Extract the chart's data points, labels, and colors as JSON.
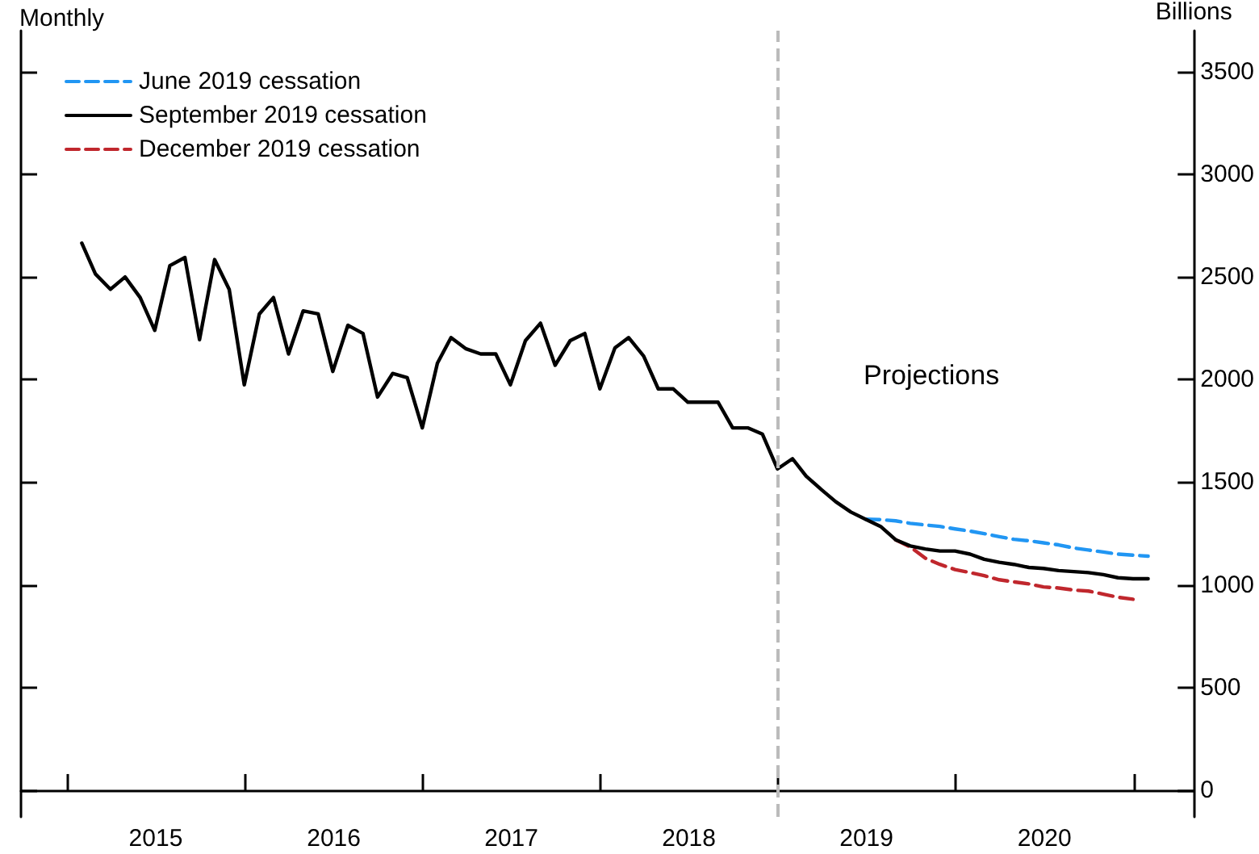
{
  "chart_data": {
    "type": "line",
    "ylabel": "Billions",
    "annotations": [
      "Monthly",
      "Projections"
    ],
    "x": [
      "2015-01-31",
      "2015-02-28",
      "2015-03-31",
      "2015-04-30",
      "2015-05-31",
      "2015-06-30",
      "2015-07-31",
      "2015-08-31",
      "2015-09-30",
      "2015-10-31",
      "2015-11-30",
      "2015-12-31",
      "2016-01-31",
      "2016-02-29",
      "2016-03-31",
      "2016-04-30",
      "2016-05-31",
      "2016-06-30",
      "2016-07-31",
      "2016-08-31",
      "2016-09-30",
      "2016-10-31",
      "2016-11-30",
      "2016-12-31",
      "2017-01-31",
      "2017-02-28",
      "2017-03-31",
      "2017-04-30",
      "2017-05-31",
      "2017-06-30",
      "2017-07-31",
      "2017-08-31",
      "2017-09-30",
      "2017-10-31",
      "2017-11-30",
      "2017-12-31",
      "2018-01-31",
      "2018-02-28",
      "2018-03-31",
      "2018-04-30",
      "2018-05-31",
      "2018-06-30",
      "2018-07-31",
      "2018-08-31",
      "2018-09-30",
      "2018-10-31",
      "2018-11-30",
      "2018-12-31",
      "2019-01-31",
      "2019-02-28",
      "2019-03-31",
      "2019-04-30",
      "2019-05-31",
      "2019-06-30",
      "2019-07-31",
      "2019-08-31",
      "2019-09-30",
      "2019-10-31",
      "2019-11-30",
      "2019-12-31",
      "2020-01-31",
      "2020-02-29",
      "2020-03-31",
      "2020-04-30",
      "2020-05-31",
      "2020-06-30",
      "2020-07-31",
      "2020-08-31",
      "2020-09-30",
      "2020-10-31",
      "2020-11-30",
      "2020-12-31",
      "2021-01-31"
    ],
    "series": [
      {
        "name": "June 2019 cessation",
        "color": "#2196f3",
        "line_style": "dashed",
        "values": [
          null,
          null,
          null,
          null,
          null,
          null,
          null,
          null,
          null,
          null,
          null,
          null,
          null,
          null,
          null,
          null,
          null,
          null,
          null,
          null,
          null,
          null,
          null,
          null,
          null,
          null,
          null,
          null,
          null,
          null,
          null,
          null,
          null,
          null,
          null,
          null,
          null,
          null,
          null,
          null,
          null,
          null,
          null,
          null,
          null,
          null,
          null,
          null,
          null,
          null,
          null,
          null,
          null,
          1320,
          1318,
          1312,
          1300,
          1292,
          1285,
          1273,
          1262,
          1250,
          1235,
          1222,
          1215,
          1205,
          1195,
          1180,
          1170,
          1160,
          1150,
          1145,
          1140
        ]
      },
      {
        "name": "September 2019 cessation",
        "color": "#000000",
        "line_style": "solid",
        "values": [
          2665,
          2515,
          2440,
          2500,
          2400,
          2240,
          2555,
          2595,
          2195,
          2585,
          2440,
          1975,
          2320,
          2400,
          2125,
          2335,
          2320,
          2040,
          2265,
          2225,
          1915,
          2030,
          2010,
          1765,
          2080,
          2205,
          2150,
          2125,
          2125,
          1975,
          2190,
          2275,
          2070,
          2190,
          2225,
          1955,
          2155,
          2205,
          2115,
          1955,
          1955,
          1890,
          1890,
          1890,
          1765,
          1765,
          1735,
          1565,
          1615,
          1530,
          1465,
          1405,
          1355,
          1320,
          1285,
          1220,
          1190,
          1175,
          1165,
          1165,
          1150,
          1125,
          1110,
          1100,
          1085,
          1080,
          1070,
          1065,
          1060,
          1050,
          1035,
          1030,
          1030
        ]
      },
      {
        "name": "December 2019 cessation",
        "color": "#c0272d",
        "line_style": "dashed",
        "values": [
          null,
          null,
          null,
          null,
          null,
          null,
          null,
          null,
          null,
          null,
          null,
          null,
          null,
          null,
          null,
          null,
          null,
          null,
          null,
          null,
          null,
          null,
          null,
          null,
          null,
          null,
          null,
          null,
          null,
          null,
          null,
          null,
          null,
          null,
          null,
          null,
          null,
          null,
          null,
          null,
          null,
          null,
          null,
          null,
          null,
          null,
          null,
          null,
          null,
          null,
          null,
          null,
          null,
          null,
          null,
          1220,
          1185,
          1130,
          1100,
          1075,
          1060,
          1045,
          1025,
          1015,
          1005,
          990,
          985,
          975,
          970,
          955,
          940,
          930,
          null
        ]
      }
    ],
    "xlim": [
      "2014-09-28",
      "2021-05-05"
    ],
    "xticks": [
      {
        "value": "2015-01-01",
        "label": null
      },
      {
        "value": "2016-01-01",
        "label": null
      },
      {
        "value": "2017-01-01",
        "label": null
      },
      {
        "value": "2018-01-01",
        "label": null
      },
      {
        "value": "2019-01-01",
        "label": null
      },
      {
        "value": "2020-01-01",
        "label": null
      },
      {
        "value": "2021-01-01",
        "label": null
      },
      {
        "value": "2015-07-02",
        "label": "2015"
      },
      {
        "value": "2016-07-02",
        "label": "2016"
      },
      {
        "value": "2017-07-02",
        "label": "2017"
      },
      {
        "value": "2018-07-02",
        "label": "2018"
      },
      {
        "value": "2019-07-02",
        "label": "2019"
      },
      {
        "value": "2020-07-02",
        "label": "2020"
      }
    ],
    "ylim": [
      -130,
      3700
    ],
    "yticks": [
      0,
      500,
      1000,
      1500,
      2000,
      2500,
      3000,
      3500
    ],
    "ref_lines": [
      {
        "axis": "x",
        "value": "2018-12-31",
        "color": "#bbbbbb",
        "line_style": "dashed"
      }
    ],
    "grid": false,
    "legend": "top left",
    "marker": "none"
  }
}
